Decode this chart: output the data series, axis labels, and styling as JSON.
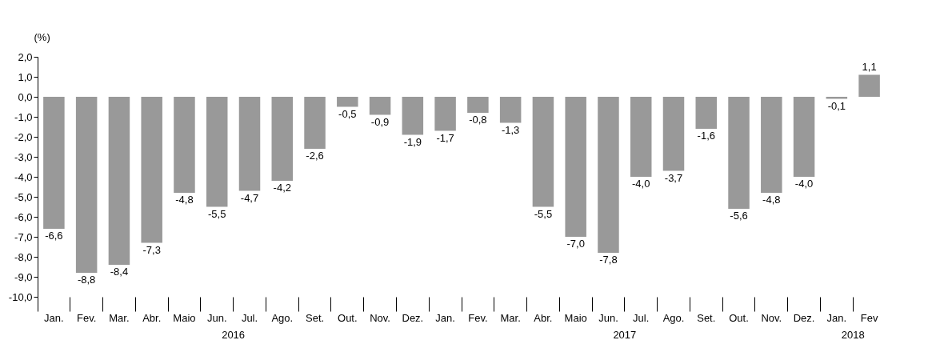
{
  "chart_data": {
    "type": "bar",
    "ylabel": "(%)",
    "categories": [
      "Jan.",
      "Fev.",
      "Mar.",
      "Abr.",
      "Maio",
      "Jun.",
      "Jul.",
      "Ago.",
      "Set.",
      "Out.",
      "Nov.",
      "Dez.",
      "Jan.",
      "Fev.",
      "Mar.",
      "Abr.",
      "Maio",
      "Jun.",
      "Jul.",
      "Ago.",
      "Set.",
      "Out.",
      "Nov.",
      "Dez.",
      "Jan.",
      "Fev"
    ],
    "values": [
      -6.6,
      -8.8,
      -8.4,
      -7.3,
      -4.8,
      -5.5,
      -4.7,
      -4.2,
      -2.6,
      -0.5,
      -0.9,
      -1.9,
      -1.7,
      -0.8,
      -1.3,
      -5.5,
      -7.0,
      -7.8,
      -4.0,
      -3.7,
      -1.6,
      -5.6,
      -4.8,
      -4.0,
      -0.1,
      1.1
    ],
    "value_labels": [
      "-6,6",
      "-8,8",
      "-8,4",
      "-7,3",
      "-4,8",
      "-5,5",
      "-4,7",
      "-4,2",
      "-2,6",
      "-0,5",
      "-0,9",
      "-1,9",
      "-1,7",
      "-0,8",
      "-1,3",
      "-5,5",
      "-7,0",
      "-7,8",
      "-4,0",
      "-3,7",
      "-1,6",
      "-5,6",
      "-4,8",
      "-4,0",
      "-0,1",
      "1,1"
    ],
    "color": "#999999",
    "ylim": [
      -10,
      2
    ],
    "yticks": [
      {
        "value": -10,
        "label": "-10,0"
      },
      {
        "value": -9,
        "label": "-9,0"
      },
      {
        "value": -8,
        "label": "-8,0"
      },
      {
        "value": -7,
        "label": "-7,0"
      },
      {
        "value": -6,
        "label": "-6,0"
      },
      {
        "value": -5,
        "label": "-5,0"
      },
      {
        "value": -4,
        "label": "-4,0"
      },
      {
        "value": -3,
        "label": "-3,0"
      },
      {
        "value": -2,
        "label": "-2,0"
      },
      {
        "value": -1,
        "label": "-1,0"
      },
      {
        "value": 0,
        "label": "0,0"
      },
      {
        "value": 1,
        "label": "1,0"
      },
      {
        "value": 2,
        "label": "2,0"
      }
    ],
    "grid": false,
    "annotations": [
      "2016",
      "2017",
      "2018"
    ]
  }
}
